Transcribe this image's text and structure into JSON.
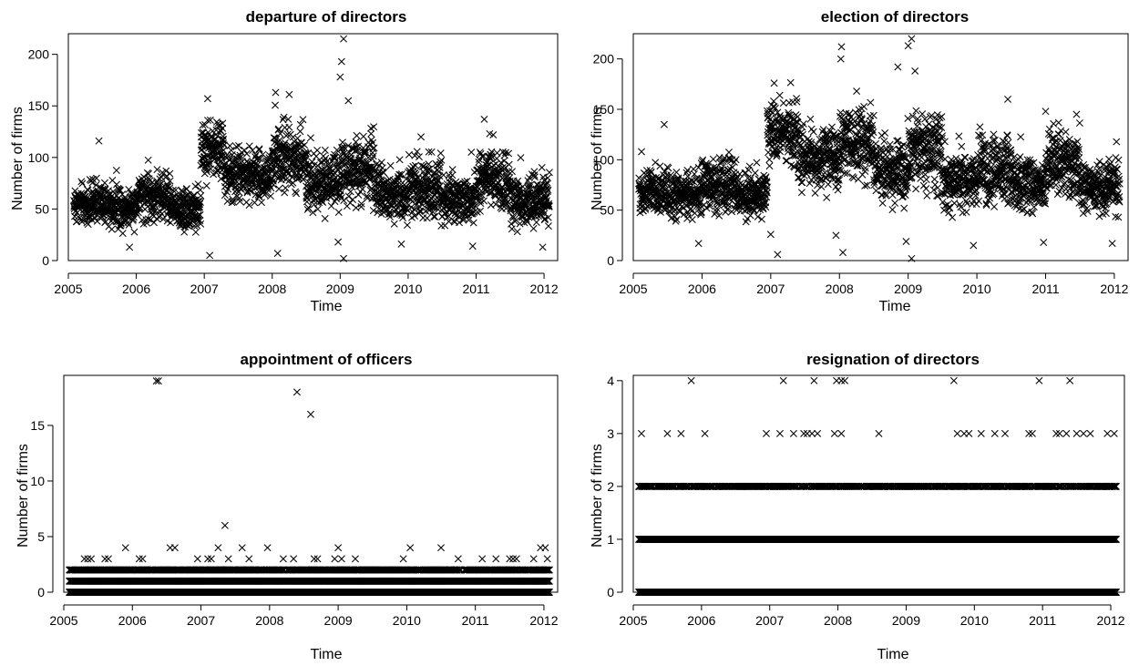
{
  "chart_data": [
    {
      "type": "scatter",
      "title": "departure of directors",
      "xlabel": "Time",
      "ylabel": "Number of firms",
      "marker": "x",
      "marker_color": "#000000",
      "xlim": [
        2005,
        2012.2
      ],
      "ylim": [
        0,
        220
      ],
      "xticks": [
        2005,
        2006,
        2007,
        2008,
        2009,
        2010,
        2011,
        2012
      ],
      "yticks": [
        0,
        50,
        100,
        150,
        200
      ],
      "grid": false,
      "x_start": 2005.08,
      "x_end": 2012.08,
      "daily_levels": [
        {
          "from": 2005.08,
          "to": 2005.5,
          "mean": 55,
          "spread": 12
        },
        {
          "from": 2005.5,
          "to": 2006.0,
          "mean": 52,
          "spread": 12
        },
        {
          "from": 2006.0,
          "to": 2006.5,
          "mean": 62,
          "spread": 14
        },
        {
          "from": 2006.5,
          "to": 2006.95,
          "mean": 50,
          "spread": 12
        },
        {
          "from": 2006.95,
          "to": 2007.3,
          "mean": 108,
          "spread": 18
        },
        {
          "from": 2007.3,
          "to": 2008.0,
          "mean": 82,
          "spread": 15
        },
        {
          "from": 2008.0,
          "to": 2008.5,
          "mean": 100,
          "spread": 18
        },
        {
          "from": 2008.5,
          "to": 2009.0,
          "mean": 75,
          "spread": 16
        },
        {
          "from": 2009.0,
          "to": 2009.5,
          "mean": 90,
          "spread": 20
        },
        {
          "from": 2009.5,
          "to": 2010.0,
          "mean": 65,
          "spread": 15
        },
        {
          "from": 2010.0,
          "to": 2010.5,
          "mean": 70,
          "spread": 18
        },
        {
          "from": 2010.5,
          "to": 2011.0,
          "mean": 58,
          "spread": 14
        },
        {
          "from": 2011.0,
          "to": 2011.5,
          "mean": 78,
          "spread": 18
        },
        {
          "from": 2011.5,
          "to": 2012.08,
          "mean": 58,
          "spread": 14
        }
      ],
      "notable_points": [
        {
          "x": 2005.45,
          "y": 116
        },
        {
          "x": 2007.05,
          "y": 157
        },
        {
          "x": 2007.08,
          "y": 5
        },
        {
          "x": 2008.05,
          "y": 163
        },
        {
          "x": 2008.08,
          "y": 7
        },
        {
          "x": 2008.25,
          "y": 161
        },
        {
          "x": 2009.05,
          "y": 215
        },
        {
          "x": 2009.02,
          "y": 193
        },
        {
          "x": 2009.0,
          "y": 178
        },
        {
          "x": 2009.05,
          "y": 2
        },
        {
          "x": 2008.97,
          "y": 18
        },
        {
          "x": 2009.12,
          "y": 155
        },
        {
          "x": 2009.9,
          "y": 16
        },
        {
          "x": 2010.95,
          "y": 14
        },
        {
          "x": 2011.12,
          "y": 137
        },
        {
          "x": 2011.98,
          "y": 13
        },
        {
          "x": 2005.9,
          "y": 13
        },
        {
          "x": 2011.2,
          "y": 123
        }
      ]
    },
    {
      "type": "scatter",
      "title": "election of directors",
      "xlabel": "Time",
      "ylabel": "Number of firms",
      "marker": "x",
      "marker_color": "#000000",
      "xlim": [
        2005,
        2012.2
      ],
      "ylim": [
        0,
        225
      ],
      "xticks": [
        2005,
        2006,
        2007,
        2008,
        2009,
        2010,
        2011,
        2012
      ],
      "yticks": [
        0,
        50,
        100,
        150,
        200
      ],
      "grid": false,
      "x_start": 2005.08,
      "x_end": 2012.08,
      "daily_levels": [
        {
          "from": 2005.08,
          "to": 2005.5,
          "mean": 68,
          "spread": 14
        },
        {
          "from": 2005.5,
          "to": 2006.0,
          "mean": 65,
          "spread": 14
        },
        {
          "from": 2006.0,
          "to": 2006.5,
          "mean": 75,
          "spread": 16
        },
        {
          "from": 2006.5,
          "to": 2006.95,
          "mean": 66,
          "spread": 14
        },
        {
          "from": 2006.95,
          "to": 2007.4,
          "mean": 128,
          "spread": 18
        },
        {
          "from": 2007.4,
          "to": 2008.0,
          "mean": 100,
          "spread": 18
        },
        {
          "from": 2008.0,
          "to": 2008.5,
          "mean": 118,
          "spread": 20
        },
        {
          "from": 2008.5,
          "to": 2009.0,
          "mean": 88,
          "spread": 18
        },
        {
          "from": 2009.0,
          "to": 2009.5,
          "mean": 108,
          "spread": 22
        },
        {
          "from": 2009.5,
          "to": 2010.0,
          "mean": 80,
          "spread": 18
        },
        {
          "from": 2010.0,
          "to": 2010.5,
          "mean": 88,
          "spread": 20
        },
        {
          "from": 2010.5,
          "to": 2011.0,
          "mean": 75,
          "spread": 16
        },
        {
          "from": 2011.0,
          "to": 2011.5,
          "mean": 95,
          "spread": 20
        },
        {
          "from": 2011.5,
          "to": 2012.08,
          "mean": 72,
          "spread": 15
        }
      ],
      "notable_points": [
        {
          "x": 2005.12,
          "y": 108
        },
        {
          "x": 2005.45,
          "y": 135
        },
        {
          "x": 2005.95,
          "y": 17
        },
        {
          "x": 2007.05,
          "y": 176
        },
        {
          "x": 2007.1,
          "y": 6
        },
        {
          "x": 2007.0,
          "y": 26
        },
        {
          "x": 2008.03,
          "y": 212
        },
        {
          "x": 2008.02,
          "y": 200
        },
        {
          "x": 2008.05,
          "y": 8
        },
        {
          "x": 2007.95,
          "y": 25
        },
        {
          "x": 2008.25,
          "y": 168
        },
        {
          "x": 2008.85,
          "y": 192
        },
        {
          "x": 2009.05,
          "y": 220
        },
        {
          "x": 2009.0,
          "y": 213
        },
        {
          "x": 2009.1,
          "y": 188
        },
        {
          "x": 2009.05,
          "y": 2
        },
        {
          "x": 2008.97,
          "y": 19
        },
        {
          "x": 2009.95,
          "y": 15
        },
        {
          "x": 2010.45,
          "y": 160
        },
        {
          "x": 2010.97,
          "y": 18
        },
        {
          "x": 2011.0,
          "y": 148
        },
        {
          "x": 2011.45,
          "y": 145
        },
        {
          "x": 2011.97,
          "y": 17
        }
      ]
    },
    {
      "type": "scatter",
      "title": "appointment of officers",
      "xlabel": "Time",
      "ylabel": "Number of firms",
      "marker": "x",
      "marker_color": "#000000",
      "xlim": [
        2005,
        2012.2
      ],
      "ylim": [
        0,
        19.5
      ],
      "xticks": [
        2005,
        2006,
        2007,
        2008,
        2009,
        2010,
        2011,
        2012
      ],
      "yticks": [
        0,
        5,
        10,
        15
      ],
      "grid": false,
      "x_start": 2005.08,
      "x_end": 2012.08,
      "count_bands": [
        {
          "y": 0,
          "density": 1.0
        },
        {
          "y": 1,
          "density": 0.9
        },
        {
          "y": 2,
          "density": 0.45
        }
      ],
      "sparse_points": [
        {
          "x": 2005.3,
          "y": 3
        },
        {
          "x": 2005.35,
          "y": 3
        },
        {
          "x": 2005.4,
          "y": 3
        },
        {
          "x": 2005.6,
          "y": 3
        },
        {
          "x": 2005.65,
          "y": 3
        },
        {
          "x": 2005.9,
          "y": 4
        },
        {
          "x": 2006.1,
          "y": 3
        },
        {
          "x": 2006.15,
          "y": 3
        },
        {
          "x": 2006.55,
          "y": 4
        },
        {
          "x": 2006.62,
          "y": 4
        },
        {
          "x": 2006.95,
          "y": 3
        },
        {
          "x": 2007.1,
          "y": 3
        },
        {
          "x": 2007.15,
          "y": 3
        },
        {
          "x": 2007.25,
          "y": 4
        },
        {
          "x": 2007.35,
          "y": 6
        },
        {
          "x": 2007.4,
          "y": 3
        },
        {
          "x": 2007.6,
          "y": 4
        },
        {
          "x": 2007.7,
          "y": 3
        },
        {
          "x": 2007.97,
          "y": 4
        },
        {
          "x": 2008.2,
          "y": 3
        },
        {
          "x": 2008.35,
          "y": 3
        },
        {
          "x": 2008.65,
          "y": 3
        },
        {
          "x": 2008.7,
          "y": 3
        },
        {
          "x": 2008.95,
          "y": 3
        },
        {
          "x": 2009.0,
          "y": 4
        },
        {
          "x": 2009.05,
          "y": 3
        },
        {
          "x": 2009.25,
          "y": 3
        },
        {
          "x": 2009.95,
          "y": 3
        },
        {
          "x": 2010.05,
          "y": 4
        },
        {
          "x": 2010.5,
          "y": 4
        },
        {
          "x": 2010.75,
          "y": 3
        },
        {
          "x": 2011.1,
          "y": 3
        },
        {
          "x": 2011.3,
          "y": 3
        },
        {
          "x": 2011.5,
          "y": 3
        },
        {
          "x": 2011.55,
          "y": 3
        },
        {
          "x": 2011.6,
          "y": 3
        },
        {
          "x": 2011.85,
          "y": 3
        },
        {
          "x": 2011.95,
          "y": 4
        },
        {
          "x": 2012.02,
          "y": 4
        },
        {
          "x": 2012.05,
          "y": 3
        }
      ],
      "notable_points": [
        {
          "x": 2006.35,
          "y": 19
        },
        {
          "x": 2006.38,
          "y": 19
        },
        {
          "x": 2008.4,
          "y": 18
        },
        {
          "x": 2008.6,
          "y": 16
        }
      ]
    },
    {
      "type": "scatter",
      "title": "resignation of directors",
      "xlabel": "Time",
      "ylabel": "Number of firms",
      "marker": "x",
      "marker_color": "#000000",
      "xlim": [
        2005,
        2012.2
      ],
      "ylim": [
        0,
        4.1
      ],
      "xticks": [
        2005,
        2006,
        2007,
        2008,
        2009,
        2010,
        2011,
        2012
      ],
      "yticks": [
        0,
        1,
        2,
        3,
        4
      ],
      "grid": false,
      "x_start": 2005.08,
      "x_end": 2012.08,
      "count_bands": [
        {
          "y": 0,
          "density": 1.0
        },
        {
          "y": 1,
          "density": 0.95
        },
        {
          "y": 2,
          "density": 0.35
        }
      ],
      "sparse_points": [
        {
          "x": 2005.12,
          "y": 3
        },
        {
          "x": 2005.5,
          "y": 3
        },
        {
          "x": 2005.7,
          "y": 3
        },
        {
          "x": 2006.05,
          "y": 3
        },
        {
          "x": 2006.95,
          "y": 3
        },
        {
          "x": 2007.15,
          "y": 3
        },
        {
          "x": 2007.35,
          "y": 3
        },
        {
          "x": 2007.5,
          "y": 3
        },
        {
          "x": 2007.55,
          "y": 3
        },
        {
          "x": 2007.62,
          "y": 3
        },
        {
          "x": 2007.7,
          "y": 3
        },
        {
          "x": 2007.95,
          "y": 3
        },
        {
          "x": 2008.05,
          "y": 3
        },
        {
          "x": 2008.6,
          "y": 3
        },
        {
          "x": 2009.75,
          "y": 3
        },
        {
          "x": 2009.85,
          "y": 3
        },
        {
          "x": 2009.92,
          "y": 3
        },
        {
          "x": 2010.1,
          "y": 3
        },
        {
          "x": 2010.3,
          "y": 3
        },
        {
          "x": 2010.45,
          "y": 3
        },
        {
          "x": 2010.8,
          "y": 3
        },
        {
          "x": 2010.85,
          "y": 3
        },
        {
          "x": 2011.2,
          "y": 3
        },
        {
          "x": 2011.25,
          "y": 3
        },
        {
          "x": 2011.35,
          "y": 3
        },
        {
          "x": 2011.5,
          "y": 3
        },
        {
          "x": 2011.6,
          "y": 3
        },
        {
          "x": 2011.7,
          "y": 3
        },
        {
          "x": 2011.95,
          "y": 3
        },
        {
          "x": 2012.05,
          "y": 3
        },
        {
          "x": 2005.85,
          "y": 4
        },
        {
          "x": 2007.2,
          "y": 4
        },
        {
          "x": 2007.65,
          "y": 4
        },
        {
          "x": 2007.98,
          "y": 4
        },
        {
          "x": 2008.05,
          "y": 4
        },
        {
          "x": 2008.1,
          "y": 4
        },
        {
          "x": 2009.7,
          "y": 4
        },
        {
          "x": 2010.95,
          "y": 4
        },
        {
          "x": 2011.4,
          "y": 4
        }
      ],
      "notable_points": []
    }
  ]
}
